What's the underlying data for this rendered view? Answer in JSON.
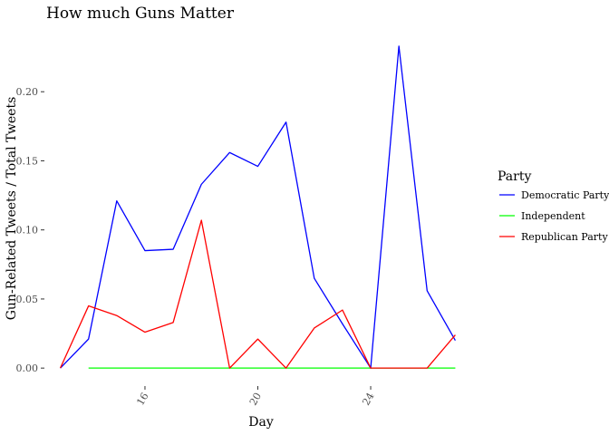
{
  "chart_data": {
    "type": "line",
    "title": "How much Guns Matter",
    "xlabel": "Day",
    "ylabel": "Gun-Related Tweets / Total Tweets",
    "xlim": [
      12.5,
      27.5
    ],
    "ylim": [
      -0.0117,
      0.2454
    ],
    "x_ticks": [
      16,
      20,
      24
    ],
    "y_ticks": [
      0.0,
      0.05,
      0.1,
      0.15,
      0.2
    ],
    "y_tick_labels": [
      "0.00",
      "0.05",
      "0.10",
      "0.15",
      "0.20"
    ],
    "grid": false,
    "legend": {
      "title": "Party",
      "placement": "right"
    },
    "series": [
      {
        "name": "Democratic Party",
        "color": "#0000ff",
        "x": [
          13,
          14,
          15,
          16,
          17,
          18,
          19,
          20,
          21,
          22,
          23,
          24,
          25,
          26,
          27
        ],
        "y": [
          0.0,
          0.021,
          0.121,
          0.085,
          0.086,
          0.133,
          0.156,
          0.146,
          0.178,
          0.065,
          0.032,
          0.0,
          0.233,
          0.056,
          0.02
        ]
      },
      {
        "name": "Independent",
        "color": "#00ff00",
        "x": [
          14,
          15,
          16,
          17,
          18,
          19,
          20,
          21,
          22,
          23,
          24,
          25,
          26,
          27
        ],
        "y": [
          0.0,
          0.0,
          0.0,
          0.0,
          0.0,
          0.0,
          0.0,
          0.0,
          0.0,
          0.0,
          0.0,
          0.0,
          0.0,
          0.0
        ]
      },
      {
        "name": "Republican Party",
        "color": "#ff0000",
        "x": [
          13,
          14,
          15,
          16,
          17,
          18,
          19,
          20,
          21,
          22,
          23,
          24,
          25,
          26,
          27
        ],
        "y": [
          0.0,
          0.045,
          0.038,
          0.026,
          0.033,
          0.107,
          0.0,
          0.021,
          0.0,
          0.029,
          0.042,
          0.0,
          0.0,
          0.0,
          0.024
        ]
      }
    ]
  }
}
